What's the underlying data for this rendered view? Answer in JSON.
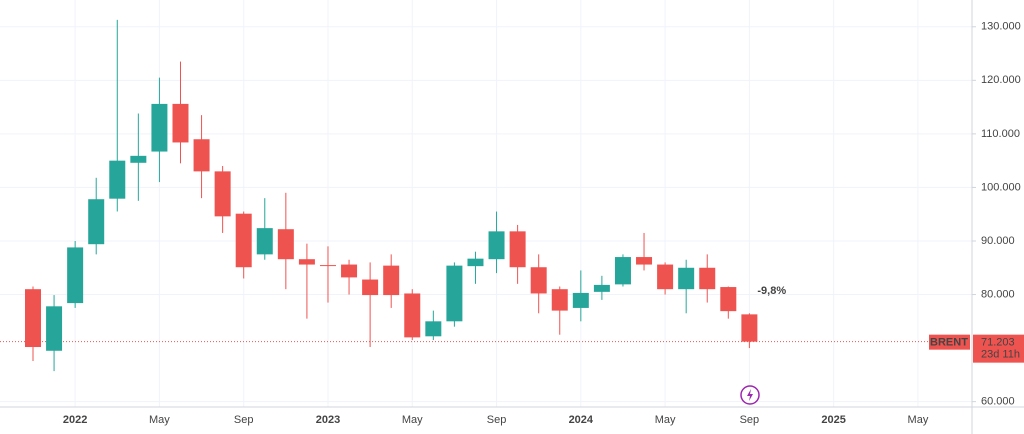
{
  "chart_data": {
    "type": "candlestick",
    "symbol": "BRENT",
    "countdown": "23d 11h",
    "annotation": "-9,8%",
    "price_line": 71.203,
    "up_color": "#26a69a",
    "down_color": "#ef5350",
    "categories": [
      null,
      null,
      "2022",
      null,
      null,
      null,
      "May",
      null,
      null,
      null,
      "Sep",
      null,
      null,
      null,
      "2023",
      null,
      null,
      null,
      "May",
      null,
      null,
      null,
      "Sep",
      null,
      null,
      null,
      "2024",
      null,
      null,
      null,
      "May",
      null,
      null,
      null,
      "Sep",
      null,
      null,
      null,
      "2025",
      null,
      null,
      null,
      "May"
    ],
    "open": [
      81,
      69.5,
      78.4,
      89.4,
      97.9,
      104.6,
      106.7,
      115.6,
      109,
      103,
      95.1,
      87.5,
      92.2,
      86.6,
      85.5,
      85.6,
      82.8,
      85.4,
      80.2,
      72.2,
      75,
      85.3,
      86.6,
      91.8,
      85.1,
      81,
      77.5,
      80.5,
      81.9,
      87,
      85.6,
      81,
      85,
      81.4,
      76.3,
      null,
      null,
      null,
      null,
      null,
      null,
      null,
      null
    ],
    "high": [
      81.5,
      79.9,
      90,
      101.8,
      131.3,
      113.8,
      120.5,
      123.5,
      113.5,
      104,
      95.5,
      98,
      99,
      89.5,
      89,
      86.5,
      86,
      87.5,
      81,
      77,
      86,
      88,
      95.5,
      93,
      87.5,
      81.5,
      84.5,
      83.5,
      87.5,
      91.5,
      86,
      86.5,
      87.5,
      81.5,
      76.5,
      null,
      null,
      null,
      null,
      null,
      null,
      null,
      null
    ],
    "low": [
      67.6,
      65.7,
      77.5,
      87.5,
      95.5,
      97.5,
      101,
      104.5,
      98,
      91.5,
      83,
      86.5,
      81,
      75.5,
      78.5,
      80,
      70.2,
      77.5,
      71.5,
      71.5,
      74,
      82,
      84,
      82,
      76.5,
      72.5,
      75,
      79,
      81.5,
      84.5,
      80,
      76.5,
      78.5,
      75.5,
      70,
      null,
      null,
      null,
      null,
      null,
      null,
      null,
      null
    ],
    "close": [
      70.2,
      77.8,
      88.8,
      97.8,
      105,
      105.9,
      115.6,
      108.4,
      103,
      94.6,
      85.1,
      92.4,
      86.6,
      85.6,
      85.4,
      83.2,
      79.9,
      79.9,
      72,
      75,
      85.4,
      86.7,
      91.8,
      85.1,
      80.2,
      77,
      80.3,
      81.8,
      87,
      85.6,
      81,
      85,
      81,
      76.9,
      71.203,
      null,
      null,
      null,
      null,
      null,
      null,
      null,
      null
    ],
    "ylim": [
      59,
      135
    ],
    "yticks": [
      {
        "value": 60,
        "label": "60.000"
      },
      {
        "value": 80,
        "label": "80.000"
      },
      {
        "value": 90,
        "label": "90.000"
      },
      {
        "value": 100,
        "label": "100.000"
      },
      {
        "value": 110,
        "label": "110.000"
      },
      {
        "value": 120,
        "label": "120.000"
      },
      {
        "value": 130,
        "label": "130.000"
      }
    ],
    "grid": true
  }
}
